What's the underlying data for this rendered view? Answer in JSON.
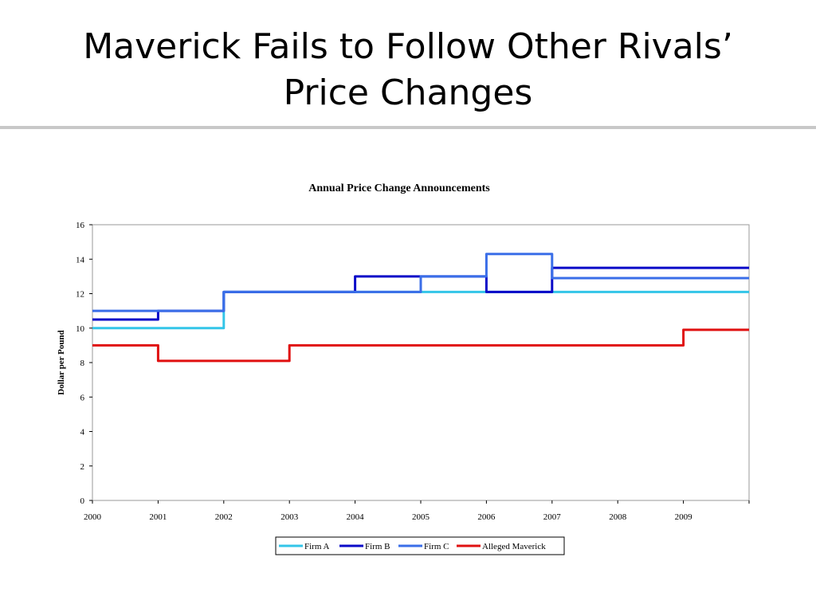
{
  "slide": {
    "title_line1": "Maverick Fails to Follow Other Rivals’",
    "title_line2": "Price Changes"
  },
  "chart_data": {
    "type": "line",
    "step": true,
    "title": "Annual Price Change Announcements",
    "xlabel": "",
    "ylabel": "Dollar per Pound",
    "categories": [
      "2000",
      "2001",
      "2002",
      "2003",
      "2004",
      "2005",
      "2006",
      "2007",
      "2008",
      "2009"
    ],
    "xlim": [
      2000,
      2010
    ],
    "ylim": [
      0,
      16
    ],
    "yticks": [
      0,
      2,
      4,
      6,
      8,
      10,
      12,
      14,
      16
    ],
    "grid": false,
    "legend_position": "bottom",
    "series": [
      {
        "name": "Firm A",
        "color": "#33c5e8",
        "points": [
          [
            2000,
            10
          ],
          [
            2002,
            12.1
          ],
          [
            2010,
            12.1
          ]
        ]
      },
      {
        "name": "Firm B",
        "color": "#0a0ac8",
        "points": [
          [
            2000,
            10.5
          ],
          [
            2001,
            11
          ],
          [
            2002,
            12.1
          ],
          [
            2004,
            13
          ],
          [
            2005,
            13
          ],
          [
            2006,
            12.1
          ],
          [
            2007,
            13.5
          ],
          [
            2010,
            13.5
          ]
        ]
      },
      {
        "name": "Firm C",
        "color": "#3a6ee8",
        "points": [
          [
            2000,
            11
          ],
          [
            2002,
            12.1
          ],
          [
            2005,
            13
          ],
          [
            2006,
            14.3
          ],
          [
            2007,
            12.9
          ],
          [
            2010,
            12.9
          ]
        ]
      },
      {
        "name": "Alleged Maverick",
        "color": "#e01010",
        "points": [
          [
            2000,
            9
          ],
          [
            2001,
            8.1
          ],
          [
            2003,
            9
          ],
          [
            2009,
            9.9
          ],
          [
            2010,
            9.9
          ]
        ]
      }
    ]
  }
}
